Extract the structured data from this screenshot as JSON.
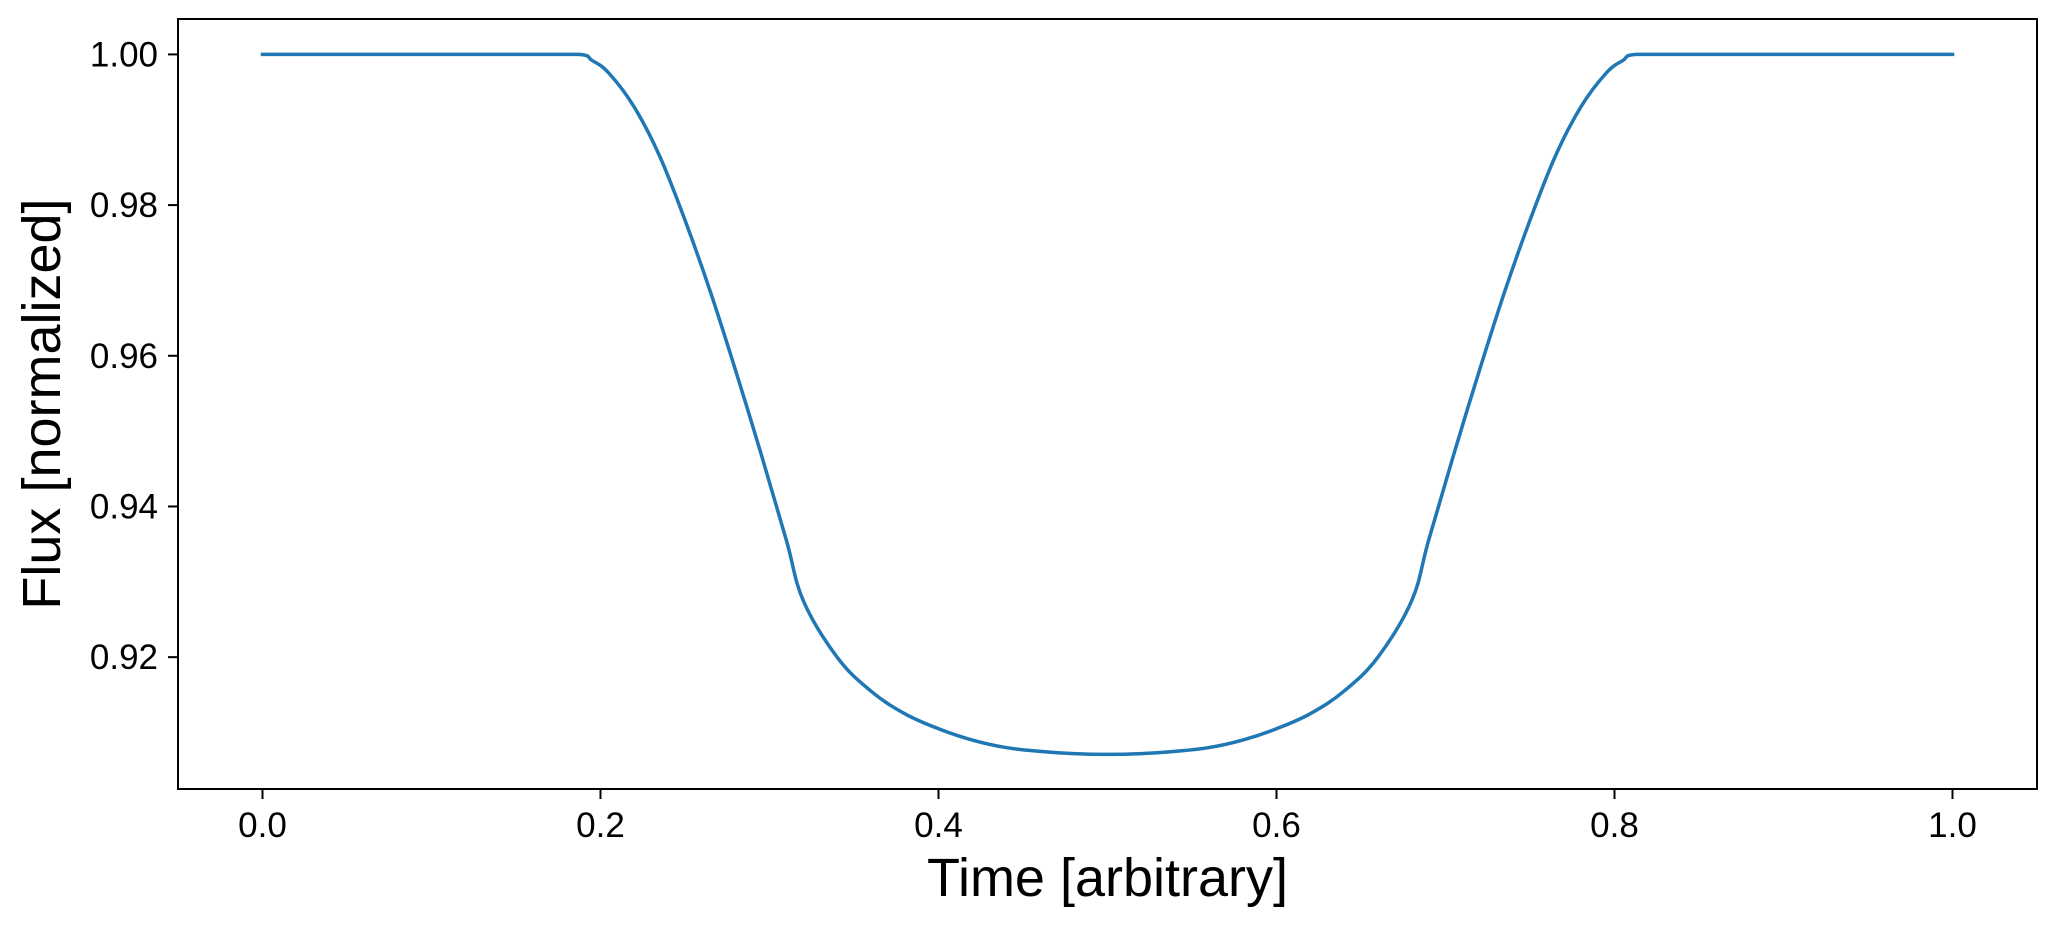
{
  "chart_data": {
    "type": "line",
    "title": "",
    "xlabel": "Time [arbitrary]",
    "ylabel": "Flux [normalized]",
    "xlim": [
      -0.05,
      1.05
    ],
    "ylim": [
      0.9025,
      1.0047
    ],
    "xticks": [
      0.0,
      0.2,
      0.4,
      0.6,
      0.8,
      1.0
    ],
    "xtick_labels": [
      "0.0",
      "0.2",
      "0.4",
      "0.6",
      "0.8",
      "1.0"
    ],
    "yticks": [
      0.92,
      0.94,
      0.96,
      0.98,
      1.0
    ],
    "ytick_labels": [
      "0.92",
      "0.94",
      "0.96",
      "0.98",
      "1.00"
    ],
    "grid": false,
    "legend": "none",
    "series": [
      {
        "color": "#1f77b4",
        "x": [
          0.0,
          0.05,
          0.1,
          0.15,
          0.187,
          0.195,
          0.205,
          0.22,
          0.235,
          0.25,
          0.265,
          0.28,
          0.295,
          0.31,
          0.32,
          0.34,
          0.36,
          0.38,
          0.4,
          0.42,
          0.44,
          0.46,
          0.48,
          0.5,
          0.52,
          0.54,
          0.56,
          0.58,
          0.6,
          0.62,
          0.64,
          0.66,
          0.68,
          0.69,
          0.705,
          0.72,
          0.735,
          0.75,
          0.765,
          0.78,
          0.795,
          0.805,
          0.813,
          0.85,
          0.9,
          0.95,
          1.0
        ],
        "y": [
          1.0,
          1.0,
          1.0,
          1.0,
          1.0,
          0.9992,
          0.9975,
          0.993,
          0.9865,
          0.978,
          0.9685,
          0.958,
          0.947,
          0.9355,
          0.9275,
          0.92,
          0.9155,
          0.9125,
          0.9105,
          0.909,
          0.908,
          0.9075,
          0.9072,
          0.9071,
          0.9072,
          0.9075,
          0.908,
          0.909,
          0.9105,
          0.9125,
          0.9155,
          0.92,
          0.9275,
          0.9355,
          0.947,
          0.958,
          0.9685,
          0.978,
          0.9865,
          0.993,
          0.9975,
          0.9992,
          1.0,
          1.0,
          1.0,
          1.0,
          1.0
        ]
      }
    ]
  }
}
